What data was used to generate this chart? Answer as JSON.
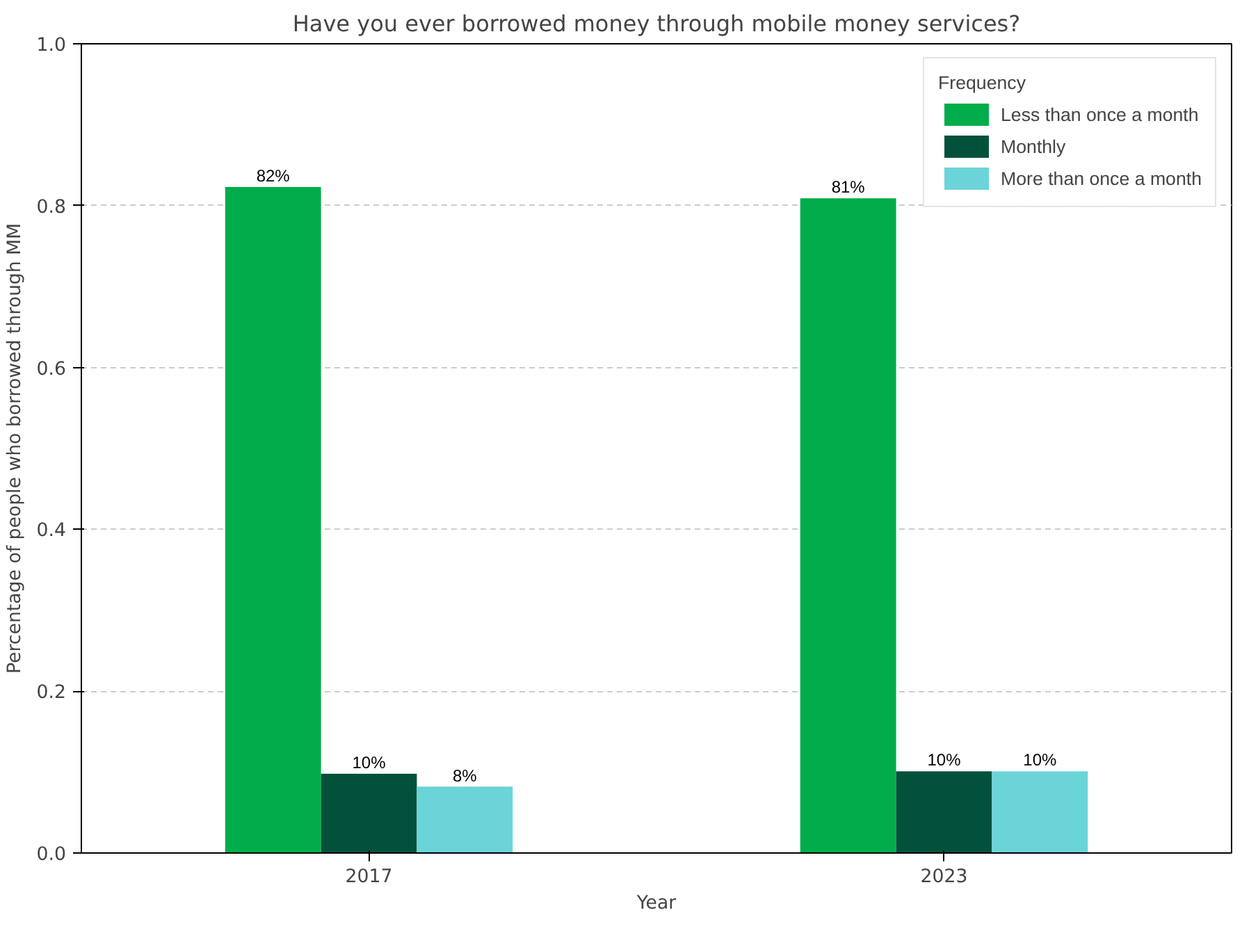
{
  "chart_data": {
    "type": "bar",
    "title": "Have you ever borrowed money through mobile money services?",
    "xlabel": "Year",
    "ylabel": "Percentage of people who borrowed through MM",
    "categories": [
      "2017",
      "2023"
    ],
    "series": [
      {
        "name": "Less than once a month",
        "color": "#00ad4a",
        "values": [
          0.823,
          0.809
        ],
        "value_labels": [
          "82%",
          "81%"
        ]
      },
      {
        "name": "Monthly",
        "color": "#01513b",
        "values": [
          0.098,
          0.101
        ],
        "value_labels": [
          "10%",
          "10%"
        ]
      },
      {
        "name": "More than once a month",
        "color": "#6bd4d8",
        "values": [
          0.082,
          0.101
        ],
        "value_labels": [
          "8%",
          "10%"
        ]
      }
    ],
    "legend_title": "Frequency",
    "legend": "top right",
    "grid": "y",
    "ylim": [
      0,
      1.0
    ],
    "yticks": [
      {
        "value": 0,
        "label": "0.0"
      },
      {
        "value": 0.2,
        "label": "0.2"
      },
      {
        "value": 0.4,
        "label": "0.4"
      },
      {
        "value": 0.6,
        "label": "0.6"
      },
      {
        "value": 0.8,
        "label": "0.8"
      },
      {
        "value": 1.0,
        "label": "1.0"
      }
    ]
  }
}
